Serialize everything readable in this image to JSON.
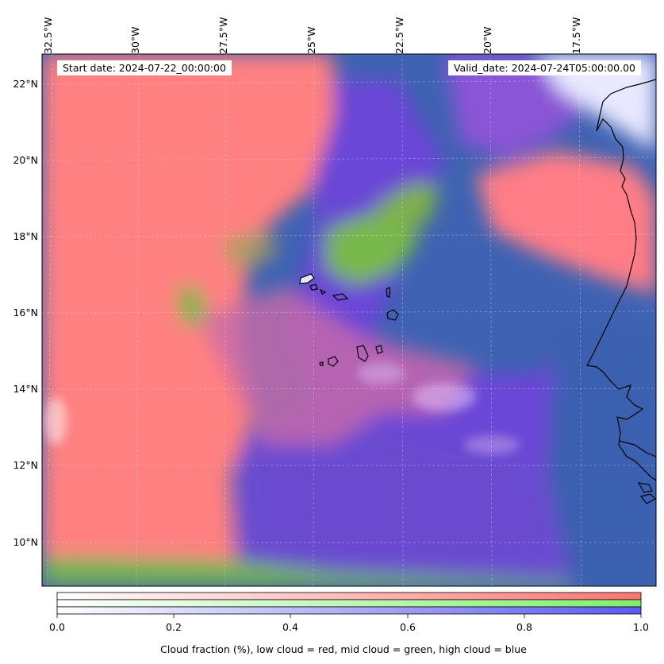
{
  "map": {
    "longitude_labels": [
      "32.5°W",
      "30°W",
      "27.5°W",
      "25°W",
      "22.5°W",
      "20°W",
      "17.5°W"
    ],
    "latitude_labels": [
      "22°N",
      "20°N",
      "18°N",
      "16°N",
      "14°N",
      "12°N",
      "10°N"
    ],
    "start_date": "Start date: 2024-07-22_00:00:00",
    "valid_date": "Valid_date: 2024-07-24T05:00:00.00"
  },
  "colorbar": {
    "ticks": [
      "0.0",
      "0.2",
      "0.4",
      "0.6",
      "0.8",
      "1.0"
    ],
    "title": "Cloud fraction (%), low cloud = red, mid cloud = green, high cloud = blue",
    "colors": {
      "low": "#ff7373",
      "mid": "#80ee6e",
      "high": "#5a5af0"
    }
  },
  "colors": {
    "low_cloud": "#ff8080",
    "mid_cloud": "#78b84a",
    "high_cloud": "#6a48d8",
    "mixed": "#3d5fb0",
    "coastline": "#000000"
  }
}
